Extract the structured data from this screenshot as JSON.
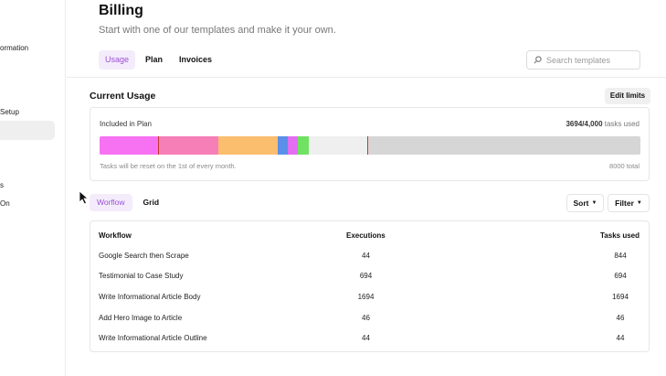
{
  "sidebar": {
    "items": [
      {
        "label": "ormation"
      },
      {
        "label": "Setup"
      },
      {
        "label": "s"
      },
      {
        "label": "On"
      }
    ]
  },
  "header": {
    "title": "Billing",
    "subtitle": "Start with one of our templates and make it your own."
  },
  "tabs": [
    {
      "label": "Usage",
      "active": true
    },
    {
      "label": "Plan",
      "active": false
    },
    {
      "label": "Invoices",
      "active": false
    }
  ],
  "search": {
    "placeholder": "Search templates",
    "icon": "search-icon"
  },
  "usage": {
    "section_title": "Current Usage",
    "edit_limits_label": "Edit limits",
    "plan_label": "Included in Plan",
    "used": "3694/4,000",
    "used_suffix": " tasks used",
    "reset_note": "Tasks will be reset on the 1st of every month.",
    "total_label": "8000 total",
    "segments": [
      {
        "color": "#f772f2",
        "fraction": 0.11
      },
      {
        "color": "#f67fb8",
        "fraction": 0.11
      },
      {
        "color": "#fbbd6e",
        "fraction": 0.11
      },
      {
        "color": "#5b8fe8",
        "fraction": 0.018
      },
      {
        "color": "#e26ef2",
        "fraction": 0.018
      },
      {
        "color": "#6fe261",
        "fraction": 0.02
      },
      {
        "color": "#efefef",
        "fraction": 0.11
      }
    ],
    "marker_color": "#c0392b"
  },
  "views": {
    "tabs": [
      {
        "label": "Worflow",
        "active": true
      },
      {
        "label": "Grid",
        "active": false
      }
    ],
    "sort_label": "Sort",
    "filter_label": "Filter"
  },
  "table": {
    "columns": [
      "Workflow",
      "Executions",
      "Tasks used"
    ],
    "rows": [
      {
        "workflow": "Google Search then Scrape",
        "executions": "44",
        "tasks": "844"
      },
      {
        "workflow": "Testimonial to Case Study",
        "executions": "694",
        "tasks": "694"
      },
      {
        "workflow": "Write Informational Article Body",
        "executions": "1694",
        "tasks": "1694"
      },
      {
        "workflow": "Add Hero Image to Article",
        "executions": "46",
        "tasks": "46"
      },
      {
        "workflow": "Write Informational Article Outline",
        "executions": "44",
        "tasks": "44"
      }
    ]
  },
  "colors": {
    "accent": "#9b4fd6",
    "accent_bg": "#f4ecfb"
  }
}
